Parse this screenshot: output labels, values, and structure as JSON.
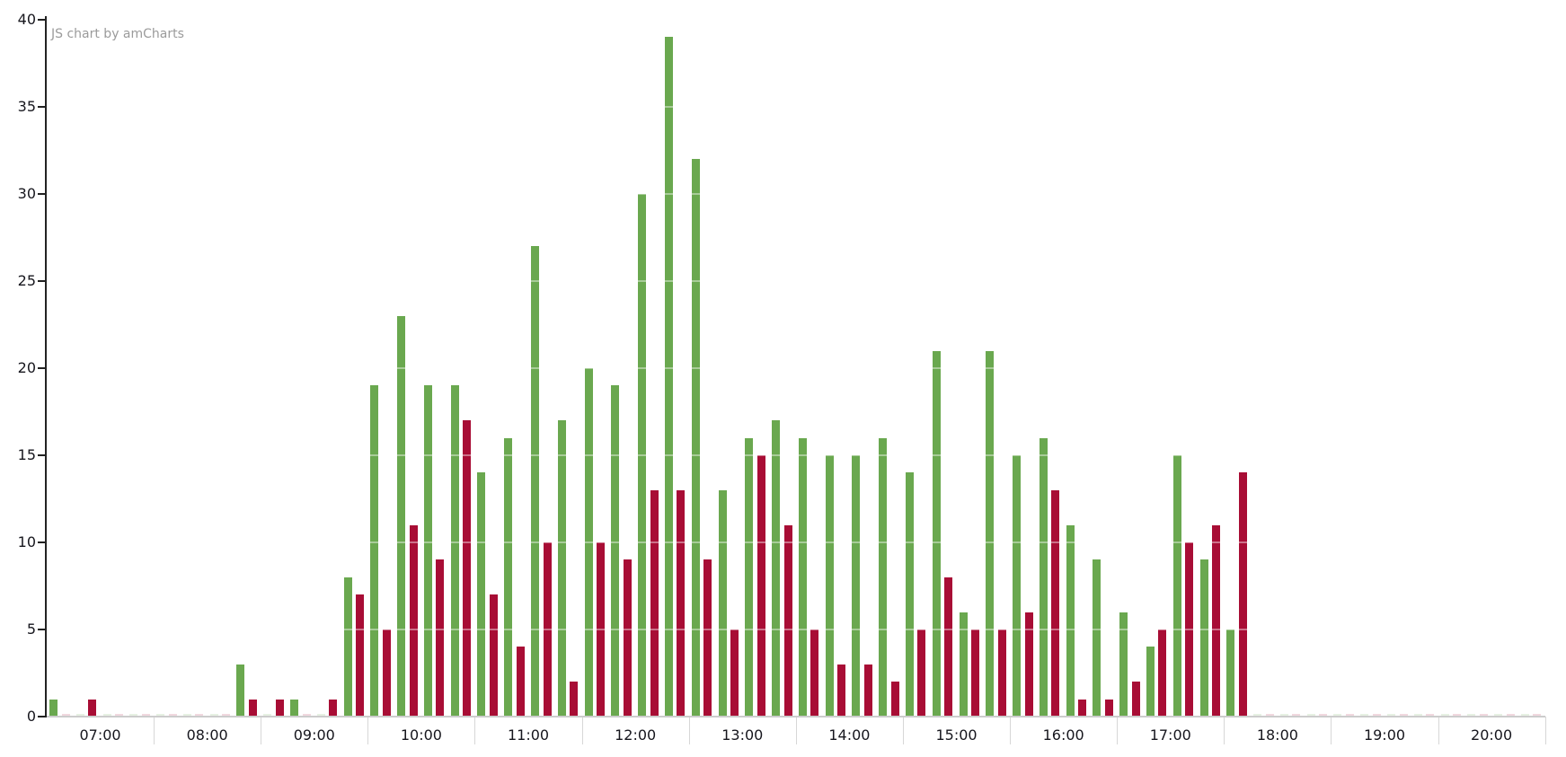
{
  "watermark": "JS chart by amCharts",
  "colors": {
    "green_series": "#6AA84F",
    "red_series": "#A80D35",
    "axis_line": "#222222",
    "category_axis_line": "#cccccc",
    "hour_separator": "#d7d7d7",
    "label_text": "#16161d",
    "watermark_text": "#9b9b9b",
    "background": "#ffffff"
  },
  "chart_data": {
    "type": "bar",
    "title": "",
    "xlabel": "",
    "ylabel": "",
    "ylim": [
      0,
      40
    ],
    "grid": "white gridlines every 5 units drawn over columns",
    "legend_position": "none",
    "y_tick_labels": [
      "0",
      "5",
      "10",
      "15",
      "20",
      "25",
      "30",
      "35",
      "40"
    ],
    "hour_labels": [
      "07:00",
      "08:00",
      "09:00",
      "10:00",
      "11:00",
      "12:00",
      "13:00",
      "14:00",
      "15:00",
      "16:00",
      "17:00",
      "18:00",
      "19:00",
      "20:00"
    ],
    "categories": [
      "07:00",
      "07:15",
      "07:30",
      "07:45",
      "08:00",
      "08:15",
      "08:30",
      "08:45",
      "09:00",
      "09:15",
      "09:30",
      "09:45",
      "10:00",
      "10:15",
      "10:30",
      "10:45",
      "11:00",
      "11:15",
      "11:30",
      "11:45",
      "12:00",
      "12:15",
      "12:30",
      "12:45",
      "13:00",
      "13:15",
      "13:30",
      "13:45",
      "14:00",
      "14:15",
      "14:30",
      "14:45",
      "15:00",
      "15:15",
      "15:30",
      "15:45",
      "16:00",
      "16:15",
      "16:30",
      "16:45",
      "17:00",
      "17:15",
      "17:30",
      "17:45",
      "18:00",
      "18:15",
      "18:30",
      "18:45",
      "19:00",
      "19:15",
      "19:30",
      "19:45",
      "20:00",
      "20:15",
      "20:30",
      "20:45"
    ],
    "series": [
      {
        "name": "green",
        "color": "#6AA84F",
        "values": [
          1,
          0,
          0,
          0,
          0,
          0,
          0,
          3,
          0,
          1,
          0,
          8,
          19,
          23,
          19,
          19,
          14,
          16,
          27,
          17,
          20,
          19,
          30,
          39,
          32,
          13,
          16,
          17,
          16,
          15,
          15,
          16,
          14,
          21,
          6,
          21,
          15,
          16,
          11,
          9,
          6,
          4,
          15,
          9,
          5,
          0,
          0,
          0,
          0,
          0,
          0,
          0,
          0,
          0,
          0,
          0
        ]
      },
      {
        "name": "red",
        "color": "#A80D35",
        "values": [
          0,
          1,
          0,
          0,
          0,
          0,
          0,
          1,
          1,
          0,
          1,
          7,
          5,
          11,
          9,
          17,
          7,
          4,
          10,
          2,
          10,
          9,
          13,
          13,
          9,
          5,
          15,
          11,
          5,
          3,
          3,
          2,
          5,
          8,
          5,
          5,
          6,
          13,
          1,
          1,
          2,
          5,
          10,
          11,
          14,
          0,
          0,
          0,
          0,
          0,
          0,
          0,
          0,
          0,
          0,
          0
        ]
      }
    ]
  }
}
